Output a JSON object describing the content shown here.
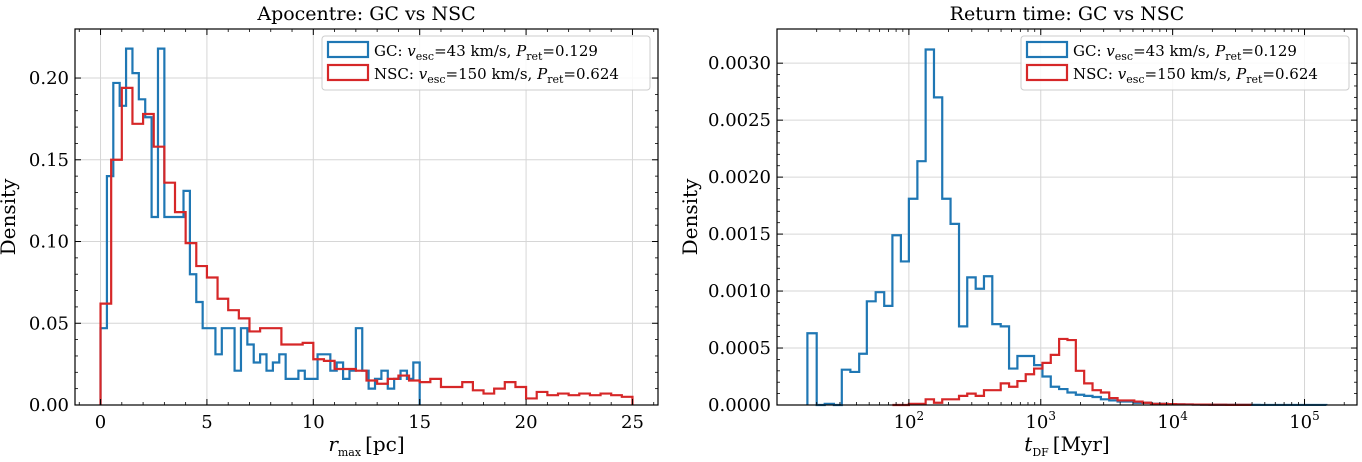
{
  "colors": {
    "gc": "#1f77b4",
    "nsc": "#d62728",
    "grid": "#d6d6d6"
  },
  "chart_data": [
    {
      "type": "histogram",
      "title": "Apocentre: GC vs NSC",
      "xlabel_var": "r",
      "xlabel_sub": "max",
      "xlabel_unit": "[pc]",
      "ylabel": "Density",
      "xlim": [
        -1.2,
        26.2
      ],
      "ylim": [
        0,
        0.23
      ],
      "xticks": [
        0,
        5,
        10,
        15,
        20,
        25
      ],
      "xtick_labels": [
        "0",
        "5",
        "10",
        "15",
        "20",
        "25"
      ],
      "yticks": [
        0,
        0.05,
        0.1,
        0.15,
        0.2
      ],
      "ytick_labels": [
        "0.00",
        "0.05",
        "0.10",
        "0.15",
        "0.20"
      ],
      "x_scale": "linear",
      "grid": true,
      "legend_position": "top-right",
      "series": [
        {
          "name": "GC",
          "legend_prefix": "GC: ",
          "legend_vesc": "=43 km/s, ",
          "legend_pret": "=0.129",
          "color": "#1f77b4",
          "edges": [
            0,
            0.3,
            0.6,
            0.9,
            1.2,
            1.5,
            1.8,
            2.1,
            2.4,
            2.7,
            3.0,
            3.3,
            3.6,
            3.9,
            4.2,
            4.5,
            4.8,
            5.1,
            5.4,
            5.7,
            6.0,
            6.3,
            6.6,
            6.9,
            7.2,
            7.5,
            7.8,
            8.1,
            8.4,
            8.7,
            9.0,
            9.3,
            9.6,
            9.9,
            10.2,
            10.5,
            10.8,
            11.1,
            11.4,
            11.7,
            12.0,
            12.3,
            12.6,
            12.9,
            13.2,
            13.5,
            13.8,
            14.1,
            14.4,
            14.7,
            15.0
          ],
          "values": [
            0.047,
            0.14,
            0.197,
            0.183,
            0.218,
            0.203,
            0.187,
            0.176,
            0.115,
            0.218,
            0.115,
            0.115,
            0.115,
            0.131,
            0.08,
            0.063,
            0.047,
            0.047,
            0.031,
            0.047,
            0.047,
            0.021,
            0.047,
            0.037,
            0.026,
            0.031,
            0.021,
            0.026,
            0.031,
            0.016,
            0.016,
            0.021,
            0.016,
            0.016,
            0.031,
            0.031,
            0.021,
            0.026,
            0.016,
            0.021,
            0.047,
            0.021,
            0.01,
            0.016,
            0.021,
            0.01,
            0.016,
            0.021,
            0.016,
            0.026
          ],
          "pre_values": [
            0.047,
            0.14,
            0.197,
            0.183,
            0.218,
            0.203,
            0.187,
            0.176,
            0.115,
            0.218
          ]
        },
        {
          "name": "NSC",
          "legend_prefix": "NSC: ",
          "legend_vesc": "=150 km/s, ",
          "legend_pret": "=0.624",
          "color": "#d62728",
          "edges": [
            0,
            0.5,
            1.0,
            1.5,
            2.0,
            2.5,
            3.0,
            3.5,
            4.0,
            4.5,
            5.0,
            5.5,
            6.0,
            6.5,
            7.0,
            7.5,
            8.0,
            8.5,
            9.0,
            9.5,
            10.0,
            10.5,
            11.0,
            11.5,
            12.0,
            12.5,
            13.0,
            13.5,
            14.0,
            14.5,
            15.0,
            15.5,
            16.0,
            16.5,
            17.0,
            17.5,
            18.0,
            18.5,
            19.0,
            19.5,
            20.0,
            20.5,
            21.0,
            21.5,
            22.0,
            22.5,
            23.0,
            23.5,
            24.0,
            24.5,
            25.0
          ],
          "values": [
            0.062,
            0.15,
            0.194,
            0.172,
            0.178,
            0.158,
            0.136,
            0.118,
            0.099,
            0.085,
            0.078,
            0.065,
            0.058,
            0.053,
            0.045,
            0.047,
            0.047,
            0.037,
            0.037,
            0.038,
            0.028,
            0.027,
            0.022,
            0.022,
            0.021,
            0.015,
            0.013,
            0.016,
            0.018,
            0.015,
            0.014,
            0.016,
            0.011,
            0.011,
            0.014,
            0.009,
            0.007,
            0.01,
            0.014,
            0.011,
            0.004,
            0.008,
            0.006,
            0.007,
            0.006,
            0.007,
            0.006,
            0.007,
            0.006,
            0.005
          ]
        }
      ]
    },
    {
      "type": "histogram",
      "title": "Return time: GC vs NSC",
      "xlabel_var": "t",
      "xlabel_sub": "DF",
      "xlabel_unit": "[Myr]",
      "ylabel": "Density",
      "x_scale": "log",
      "xlim": [
        10,
        250000
      ],
      "ylim": [
        0,
        0.0033
      ],
      "xticks": [
        100,
        1000,
        10000,
        100000
      ],
      "xtick_labels": [
        "10",
        "10",
        "10",
        "10"
      ],
      "xtick_exponents": [
        "2",
        "3",
        "4",
        "5"
      ],
      "yticks": [
        0,
        0.0005,
        0.001,
        0.0015,
        0.002,
        0.0025,
        0.003
      ],
      "ytick_labels": [
        "0.0000",
        "0.0005",
        "0.0010",
        "0.0015",
        "0.0020",
        "0.0025",
        "0.0030"
      ],
      "grid": true,
      "legend_position": "top-right",
      "series": [
        {
          "name": "GC",
          "legend_prefix": "GC: ",
          "legend_vesc": "=43 km/s, ",
          "legend_pret": "=0.129",
          "color": "#1f77b4",
          "edges": [
            17,
            20,
            23,
            27,
            31,
            36,
            42,
            48,
            56,
            65,
            75,
            87,
            100,
            116,
            134,
            155,
            179,
            207,
            240,
            277,
            321,
            371,
            429,
            497,
            575,
            665,
            769,
            890,
            1030,
            1191,
            1378,
            1594,
            1845,
            2134,
            2469,
            2857,
            3305,
            3824,
            4424,
            5119,
            5922,
            6852,
            7927,
            9171,
            10611,
            12276,
            14203,
            16432,
            19012,
            21996,
            25448,
            29443,
            34064,
            39411,
            45598,
            52755,
            61036,
            70616,
            81700,
            94524,
            109362,
            126528,
            146388
          ],
          "values": [
            0.00063,
            0.0,
            1e-05,
            0.0,
            0.00031,
            0.00029,
            0.00045,
            0.00091,
            0.00099,
            0.00087,
            0.00149,
            0.00126,
            0.00181,
            0.00214,
            0.00312,
            0.0027,
            0.00181,
            0.00159,
            0.00069,
            0.00112,
            0.00102,
            0.00113,
            0.00071,
            0.00069,
            0.00032,
            0.00043,
            0.00043,
            0.00035,
            0.00025,
            0.00016,
            0.00014,
            0.00011,
            9e-05,
            8e-05,
            7e-05,
            5e-05,
            4e-05,
            3e-05,
            3e-05,
            2e-05,
            2e-05,
            1e-05,
            1e-05,
            8e-06,
            6e-06,
            5e-06,
            4e-06,
            3e-06,
            2e-06,
            2e-06,
            1e-06,
            1e-06,
            1e-06,
            1e-06,
            5e-07,
            5e-07,
            5e-07,
            5e-07,
            5e-07,
            5e-07,
            5e-07,
            5e-07
          ]
        },
        {
          "name": "NSC",
          "legend_prefix": "NSC: ",
          "legend_vesc": "=150 km/s, ",
          "legend_pret": "=0.624",
          "color": "#d62728",
          "edges": [
            75,
            87,
            100,
            116,
            134,
            155,
            179,
            207,
            240,
            277,
            321,
            371,
            429,
            497,
            575,
            665,
            769,
            890,
            1030,
            1191,
            1378,
            1594,
            1845,
            2134,
            2469,
            2857,
            3305,
            3824,
            4424,
            5119,
            5922,
            6852,
            7927,
            9171,
            10611,
            12276,
            14203,
            16432,
            19012,
            21996,
            25448,
            29443,
            34064,
            39411
          ],
          "values": [
            0.0,
            0.0,
            1e-05,
            1e-05,
            5e-05,
            2e-05,
            5e-05,
            5e-05,
            8e-05,
            0.0001,
            8e-05,
            0.00013,
            0.00013,
            0.00019,
            0.00016,
            0.00021,
            0.00027,
            0.00032,
            0.00037,
            0.00044,
            0.00058,
            0.00057,
            0.0003,
            0.00019,
            0.00013,
            0.00011,
            6e-05,
            4e-05,
            4e-05,
            3e-05,
            2e-05,
            1e-05,
            1e-05,
            8e-06,
            6e-06,
            5e-06,
            4e-06,
            3e-06,
            2e-06,
            2e-06,
            1e-06,
            1e-06,
            1e-06
          ]
        }
      ]
    }
  ]
}
